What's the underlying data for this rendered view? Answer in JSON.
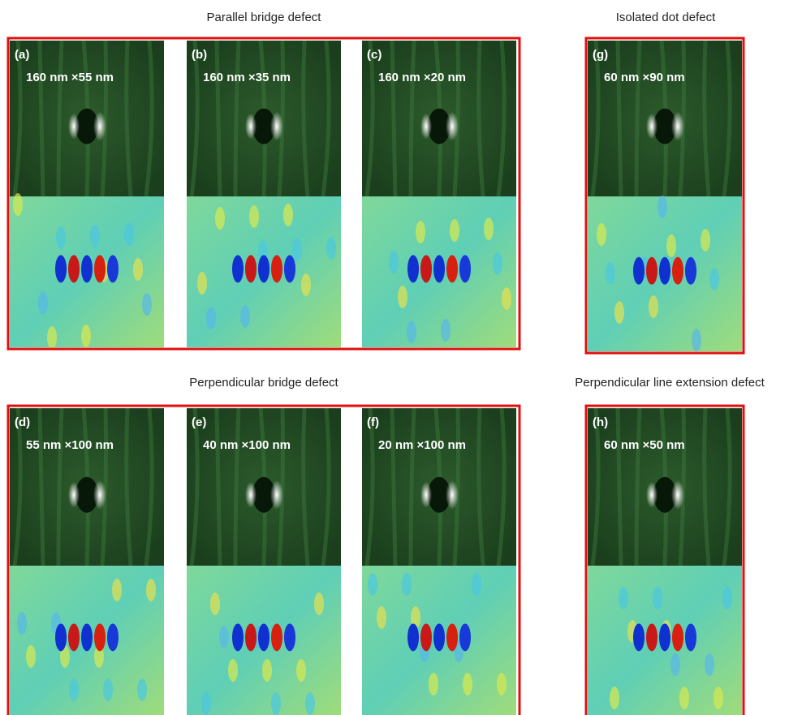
{
  "groups": [
    {
      "title": "Parallel bridge defect",
      "panels": [
        {
          "label": "(a)",
          "size": "160 nm ×55 nm"
        },
        {
          "label": "(b)",
          "size": "160 nm ×35 nm"
        },
        {
          "label": "(c)",
          "size": "160 nm ×20 nm"
        }
      ]
    },
    {
      "title": "Isolated dot defect",
      "panels": [
        {
          "label": "(g)",
          "size": "60 nm ×90 nm"
        }
      ]
    },
    {
      "title": "Perpendicular bridge defect",
      "panels": [
        {
          "label": "(d)",
          "size": "55 nm ×100 nm"
        },
        {
          "label": "(e)",
          "size": "40 nm ×100 nm"
        },
        {
          "label": "(f)",
          "size": "20 nm ×100 nm"
        }
      ]
    },
    {
      "title": "Perpendicular line extension defect",
      "panels": [
        {
          "label": "(h)",
          "size": "60 nm ×50 nm"
        }
      ]
    }
  ]
}
